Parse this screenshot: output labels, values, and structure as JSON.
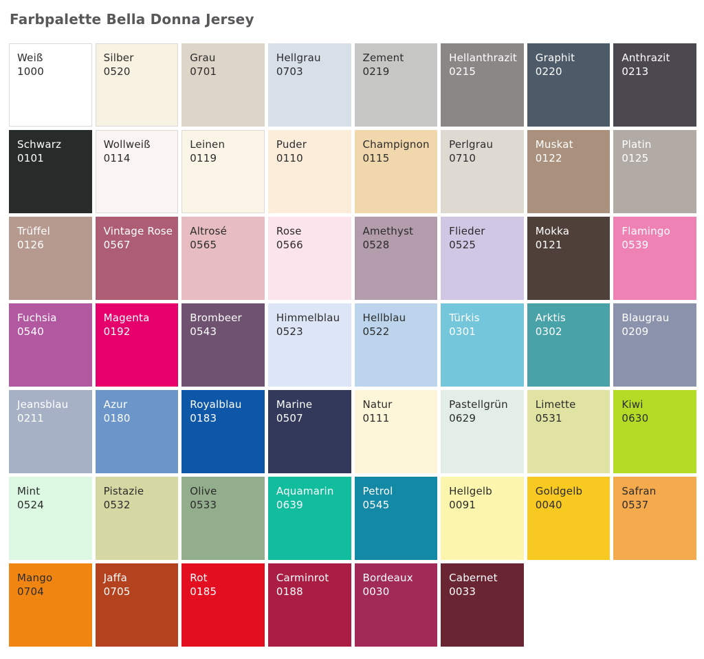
{
  "page": {
    "title": "Farbpalette Bella Donna Jersey",
    "title_color": "#58585b",
    "background": "#ffffff"
  },
  "palette": {
    "columns": 8,
    "text_colors": {
      "dark": "#2b2b2b",
      "light": "#ffffff"
    },
    "swatches": [
      {
        "name": "Weiß",
        "code": "1000",
        "color": "#ffffff",
        "text": "dark",
        "border": true
      },
      {
        "name": "Silber",
        "code": "0520",
        "color": "#f7f2e2",
        "text": "dark",
        "border": true
      },
      {
        "name": "Grau",
        "code": "0701",
        "color": "#ddd5c8",
        "text": "dark",
        "border": false
      },
      {
        "name": "Hellgrau",
        "code": "0703",
        "color": "#d7dfe9",
        "text": "dark",
        "border": false
      },
      {
        "name": "Zement",
        "code": "0219",
        "color": "#c6c7c4",
        "text": "dark",
        "border": false
      },
      {
        "name": "Hellanthrazit",
        "code": "0215",
        "color": "#8b8787",
        "text": "light",
        "border": false
      },
      {
        "name": "Graphit",
        "code": "0220",
        "color": "#4d5a67",
        "text": "light",
        "border": false
      },
      {
        "name": "Anthrazit",
        "code": "0213",
        "color": "#4c4850",
        "text": "light",
        "border": false
      },
      {
        "name": "Schwarz",
        "code": "0101",
        "color": "#272b2a",
        "text": "light",
        "border": false
      },
      {
        "name": "Wollweiß",
        "code": "0114",
        "color": "#faf5f3",
        "text": "dark",
        "border": true
      },
      {
        "name": "Leinen",
        "code": "0119",
        "color": "#fbf5e8",
        "text": "dark",
        "border": true
      },
      {
        "name": "Puder",
        "code": "0110",
        "color": "#fcedda",
        "text": "dark",
        "border": false
      },
      {
        "name": "Champignon",
        "code": "0115",
        "color": "#f1d7ac",
        "text": "dark",
        "border": false
      },
      {
        "name": "Perlgrau",
        "code": "0710",
        "color": "#dedad2",
        "text": "dark",
        "border": false
      },
      {
        "name": "Muskat",
        "code": "0122",
        "color": "#a9917e",
        "text": "light",
        "border": false
      },
      {
        "name": "Platin",
        "code": "0125",
        "color": "#b1aaa5",
        "text": "light",
        "border": false
      },
      {
        "name": "Trüffel",
        "code": "0126",
        "color": "#b69a90",
        "text": "light",
        "border": false
      },
      {
        "name": "Vintage Rose",
        "code": "0567",
        "color": "#ad5e75",
        "text": "light",
        "border": false
      },
      {
        "name": "Altrosé",
        "code": "0565",
        "color": "#e8bdc2",
        "text": "dark",
        "border": false
      },
      {
        "name": "Rose",
        "code": "0566",
        "color": "#fce4ed",
        "text": "dark",
        "border": false
      },
      {
        "name": "Amethyst",
        "code": "0528",
        "color": "#b39dac",
        "text": "dark",
        "border": false
      },
      {
        "name": "Flieder",
        "code": "0525",
        "color": "#cfc7e4",
        "text": "dark",
        "border": false
      },
      {
        "name": "Mokka",
        "code": "0121",
        "color": "#50403a",
        "text": "light",
        "border": false
      },
      {
        "name": "Flamingo",
        "code": "0539",
        "color": "#ee82b4",
        "text": "light",
        "border": false
      },
      {
        "name": "Fuchsia",
        "code": "0540",
        "color": "#b258a0",
        "text": "light",
        "border": false
      },
      {
        "name": "Magenta",
        "code": "0192",
        "color": "#e5006c",
        "text": "light",
        "border": false
      },
      {
        "name": "Brombeer",
        "code": "0543",
        "color": "#6f5170",
        "text": "light",
        "border": false
      },
      {
        "name": "Himmelblau",
        "code": "0523",
        "color": "#dce6f6",
        "text": "dark",
        "border": false
      },
      {
        "name": "Hellblau",
        "code": "0522",
        "color": "#bcd5ec",
        "text": "dark",
        "border": false
      },
      {
        "name": "Türkis",
        "code": "0301",
        "color": "#74c6db",
        "text": "light",
        "border": false
      },
      {
        "name": "Arktis",
        "code": "0302",
        "color": "#48a2a8",
        "text": "light",
        "border": false
      },
      {
        "name": "Blaugrau",
        "code": "0209",
        "color": "#8a92ac",
        "text": "light",
        "border": false
      },
      {
        "name": "Jeansblau",
        "code": "0211",
        "color": "#a7b1c6",
        "text": "light",
        "border": false
      },
      {
        "name": "Azur",
        "code": "0180",
        "color": "#6c96c9",
        "text": "light",
        "border": false
      },
      {
        "name": "Royalblau",
        "code": "0183",
        "color": "#0e57a8",
        "text": "light",
        "border": false
      },
      {
        "name": "Marine",
        "code": "0507",
        "color": "#32395b",
        "text": "light",
        "border": false
      },
      {
        "name": "Natur",
        "code": "0111",
        "color": "#fdf6d9",
        "text": "dark",
        "border": false
      },
      {
        "name": "Pastellgrün",
        "code": "0629",
        "color": "#e3eee7",
        "text": "dark",
        "border": false
      },
      {
        "name": "Limette",
        "code": "0531",
        "color": "#e0e3a1",
        "text": "dark",
        "border": false
      },
      {
        "name": "Kiwi",
        "code": "0630",
        "color": "#b4dc26",
        "text": "dark",
        "border": false
      },
      {
        "name": "Mint",
        "code": "0524",
        "color": "#dcf8e3",
        "text": "dark",
        "border": false
      },
      {
        "name": "Pistazie",
        "code": "0532",
        "color": "#d6d8a4",
        "text": "dark",
        "border": false
      },
      {
        "name": "Olive",
        "code": "0533",
        "color": "#92ae8d",
        "text": "dark",
        "border": false
      },
      {
        "name": "Aquamarin",
        "code": "0639",
        "color": "#12bd9e",
        "text": "light",
        "border": false
      },
      {
        "name": "Petrol",
        "code": "0545",
        "color": "#1389a5",
        "text": "light",
        "border": false
      },
      {
        "name": "Hellgelb",
        "code": "0091",
        "color": "#fbf5ae",
        "text": "dark",
        "border": false
      },
      {
        "name": "Goldgelb",
        "code": "0040",
        "color": "#f8c921",
        "text": "dark",
        "border": false
      },
      {
        "name": "Safran",
        "code": "0537",
        "color": "#f5aa4e",
        "text": "dark",
        "border": false
      },
      {
        "name": "Mango",
        "code": "0704",
        "color": "#f08611",
        "text": "dark",
        "border": false
      },
      {
        "name": "Jaffa",
        "code": "0705",
        "color": "#b4421e",
        "text": "light",
        "border": false
      },
      {
        "name": "Rot",
        "code": "0185",
        "color": "#e30e20",
        "text": "light",
        "border": false
      },
      {
        "name": "Carminrot",
        "code": "0188",
        "color": "#aa1e43",
        "text": "light",
        "border": false
      },
      {
        "name": "Bordeaux",
        "code": "0030",
        "color": "#a12a57",
        "text": "light",
        "border": false
      },
      {
        "name": "Cabernet",
        "code": "0033",
        "color": "#6a2532",
        "text": "light",
        "border": false
      }
    ]
  }
}
